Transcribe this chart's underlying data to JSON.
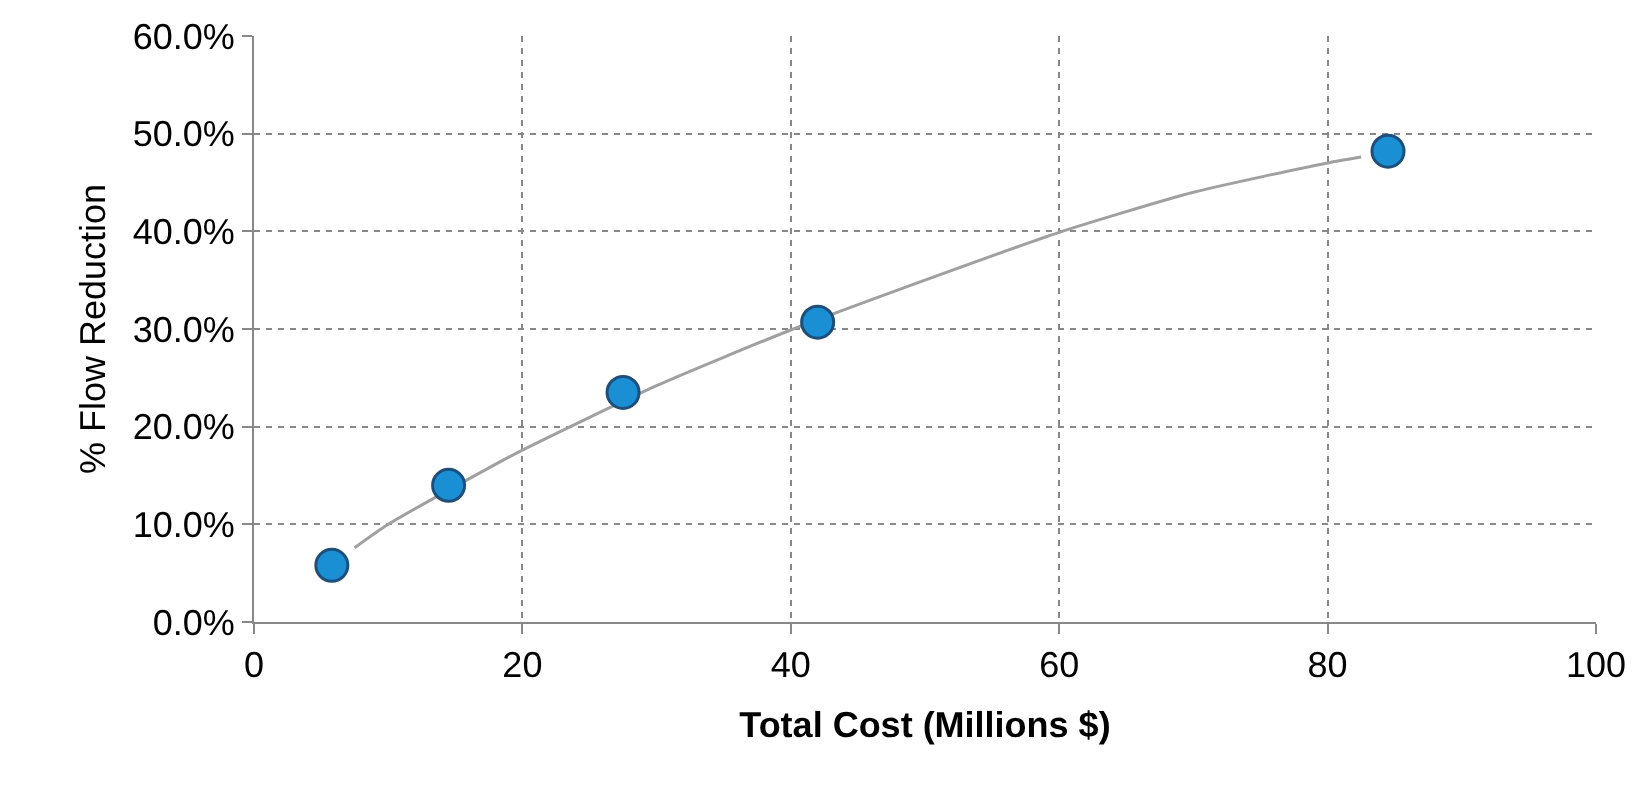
{
  "chart_data": {
    "type": "scatter",
    "xlabel": "Total Cost (Millions $)",
    "ylabel": "% Flow Reduction",
    "xlim": [
      0,
      100
    ],
    "xticks": [
      0,
      20,
      40,
      60,
      80,
      100
    ],
    "ylim": [
      0,
      60
    ],
    "yticks": [
      {
        "value": 0,
        "label": "0.0%"
      },
      {
        "value": 10,
        "label": "10.0%"
      },
      {
        "value": 20,
        "label": "20.0%"
      },
      {
        "value": 30,
        "label": "30.0%"
      },
      {
        "value": 40,
        "label": "40.0%"
      },
      {
        "value": 50,
        "label": "50.0%"
      },
      {
        "value": 60,
        "label": "60.0%"
      }
    ],
    "grid": true,
    "series": [
      {
        "type": "line",
        "color": "#a0a0a0",
        "marker": "none",
        "line_style": "solid",
        "x": [
          7.5,
          10,
          17,
          20,
          30,
          40,
          50,
          60,
          70,
          80,
          82.5
        ],
        "values": [
          7.6,
          10.0,
          15.4,
          17.6,
          24.2,
          29.9,
          35.0,
          39.9,
          44.0,
          47.0,
          47.6
        ]
      },
      {
        "type": "scatter",
        "color": "#1a8fd4",
        "marker": "circle",
        "x": [
          5.8,
          14.5,
          27.5,
          42,
          84.5
        ],
        "values": [
          5.8,
          14.0,
          23.5,
          30.7,
          48.2
        ]
      }
    ]
  }
}
